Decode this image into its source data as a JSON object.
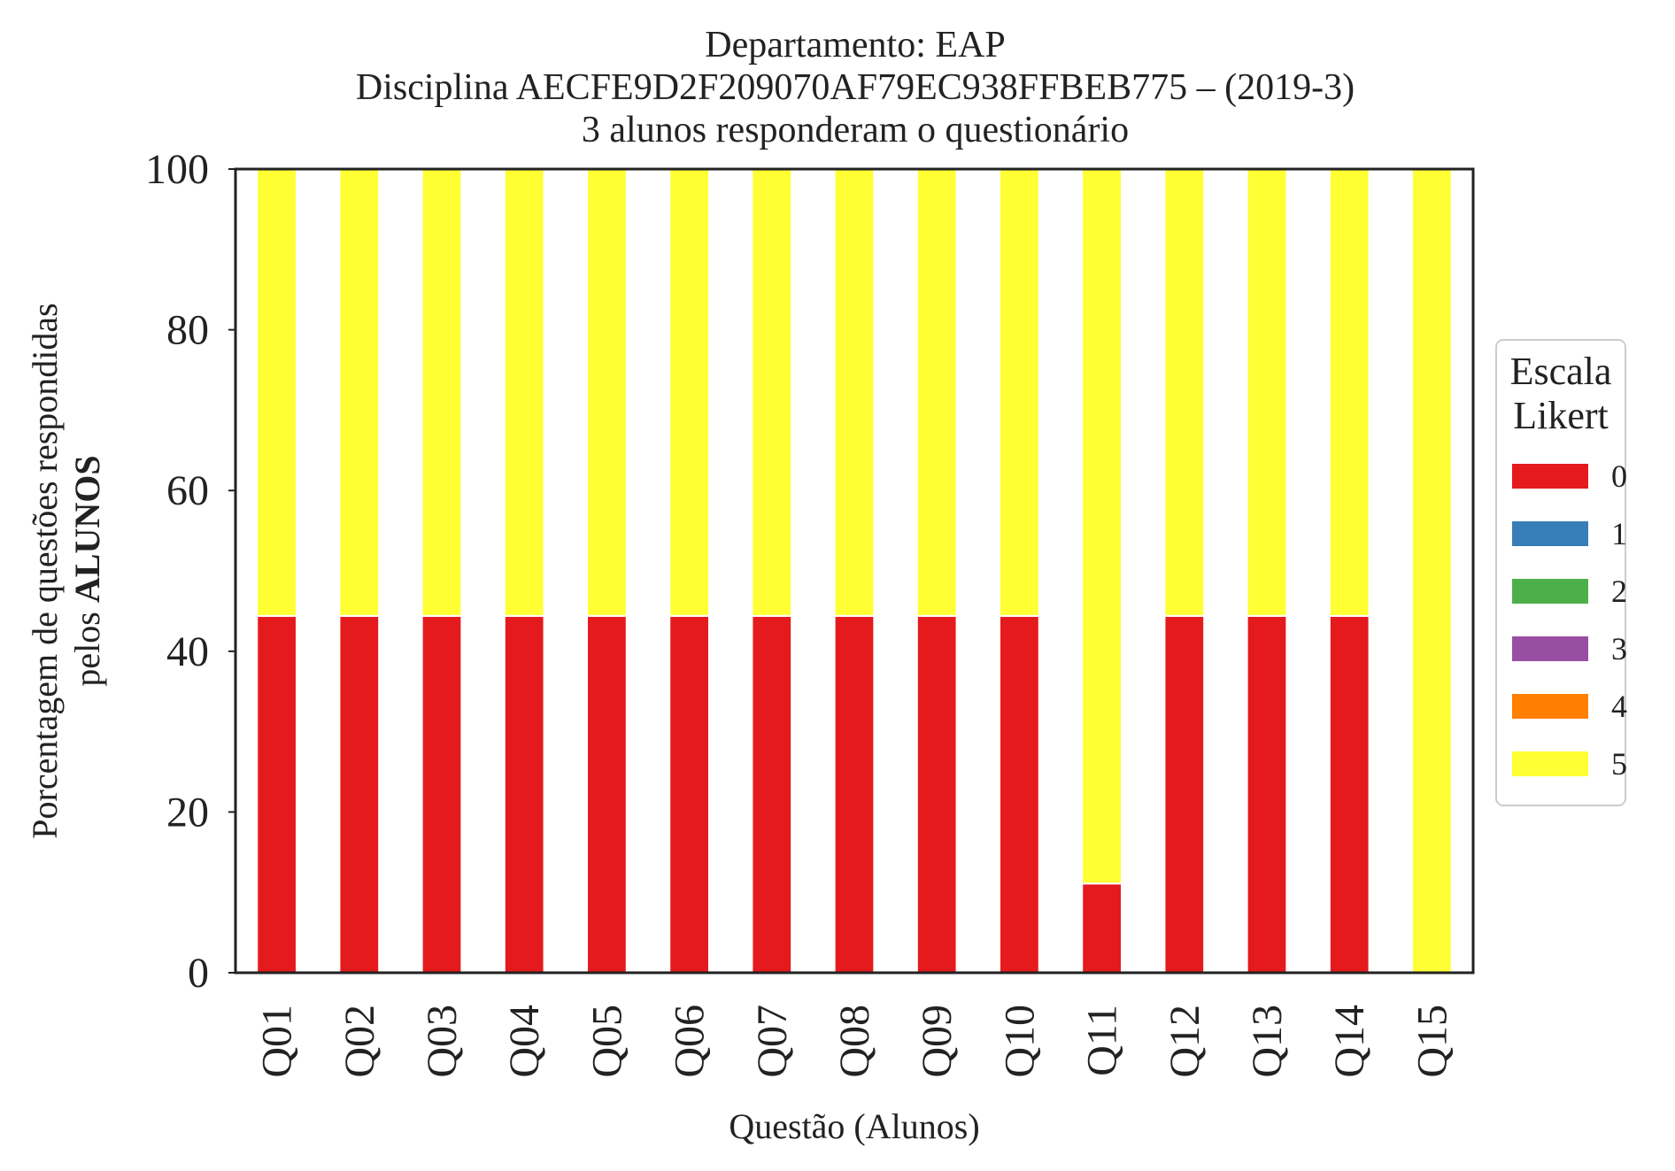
{
  "chart_data": {
    "type": "bar",
    "stacked": true,
    "title_lines": [
      "Departamento: EAP",
      "Disciplina AECFE9D2F209070AF79EC938FFBEB775 – (2019-3)",
      "3 alunos responderam o questionário"
    ],
    "ylabel_line1": "Porcentagem de questões respondidas",
    "ylabel_line2_prefix": "pelos ",
    "ylabel_line2_bold": "ALUNOS",
    "xlabel": "Questão (Alunos)",
    "categories": [
      "Q01",
      "Q02",
      "Q03",
      "Q04",
      "Q05",
      "Q06",
      "Q07",
      "Q08",
      "Q09",
      "Q10",
      "Q11",
      "Q12",
      "Q13",
      "Q14",
      "Q15"
    ],
    "ylim": [
      0,
      100
    ],
    "yticks": [
      0,
      20,
      40,
      60,
      80,
      100
    ],
    "grid": false,
    "legend": {
      "title_lines": [
        "Escala",
        "Likert"
      ],
      "placement": "right-center"
    },
    "series": [
      {
        "name": "0",
        "color": "#e41a1c",
        "values": [
          44.4,
          44.4,
          44.4,
          44.4,
          44.4,
          44.4,
          44.4,
          44.4,
          44.4,
          44.4,
          11.1,
          44.4,
          44.4,
          44.4,
          0
        ]
      },
      {
        "name": "1",
        "color": "#377eb8",
        "values": [
          0,
          0,
          0,
          0,
          0,
          0,
          0,
          0,
          0,
          0,
          0,
          0,
          0,
          0,
          0
        ]
      },
      {
        "name": "2",
        "color": "#4daf4a",
        "values": [
          0,
          0,
          0,
          0,
          0,
          0,
          0,
          0,
          0,
          0,
          0,
          0,
          0,
          0,
          0
        ]
      },
      {
        "name": "3",
        "color": "#984ea3",
        "values": [
          0,
          0,
          0,
          0,
          0,
          0,
          0,
          0,
          0,
          0,
          0,
          0,
          0,
          0,
          0
        ]
      },
      {
        "name": "4",
        "color": "#ff7f00",
        "values": [
          0,
          0,
          0,
          0,
          0,
          0,
          0,
          0,
          0,
          0,
          0,
          0,
          0,
          0,
          0
        ]
      },
      {
        "name": "5",
        "color": "#ffff33",
        "values": [
          55.6,
          55.6,
          55.6,
          55.6,
          55.6,
          55.6,
          55.6,
          55.6,
          55.6,
          55.6,
          88.9,
          55.6,
          55.6,
          55.6,
          100
        ]
      }
    ]
  }
}
